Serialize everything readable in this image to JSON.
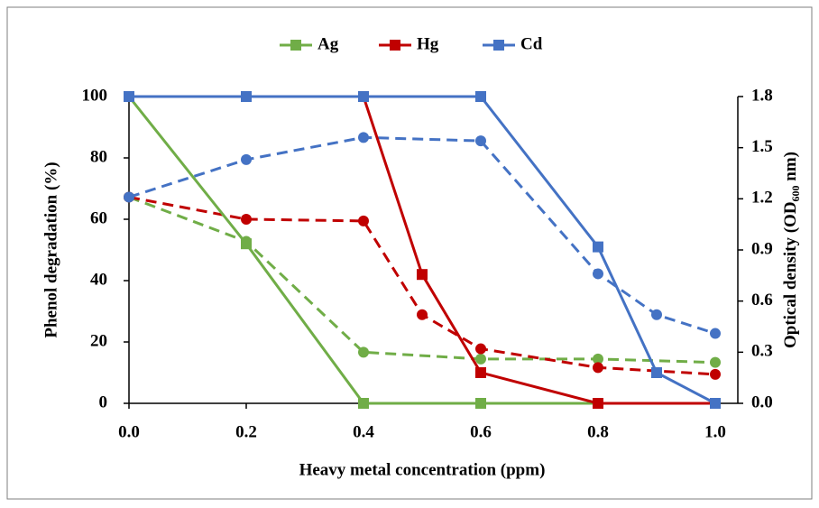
{
  "chart_data": {
    "type": "line",
    "xlabel": "Heavy metal concentration (ppm)",
    "ylabel": "Phenol degradation (%)",
    "y2label": {
      "text": "Optical density (OD",
      "subscript": "600",
      "after": " nm)"
    },
    "xlim": [
      0,
      1
    ],
    "ylim": [
      0,
      100
    ],
    "y2lim": [
      0,
      1.8
    ],
    "xticks": [
      {
        "value": 0,
        "label": "0.0"
      },
      {
        "value": 0.2,
        "label": "0.2"
      },
      {
        "value": 0.4,
        "label": "0.4"
      },
      {
        "value": 0.6,
        "label": "0.6"
      },
      {
        "value": 0.8,
        "label": "0.8"
      },
      {
        "value": 1,
        "label": "1.0"
      }
    ],
    "yticks": [
      0,
      20,
      40,
      60,
      80,
      100
    ],
    "y2ticks": [
      {
        "value": 0,
        "label": "0.0"
      },
      {
        "value": 0.3,
        "label": "0.3"
      },
      {
        "value": 0.6,
        "label": "0.6"
      },
      {
        "value": 0.9,
        "label": "0.9"
      },
      {
        "value": 1.2,
        "label": "1.2"
      },
      {
        "value": 1.5,
        "label": "1.5"
      },
      {
        "value": 1.8,
        "label": "1.8"
      }
    ],
    "legend": "top",
    "series": [
      {
        "color": "#70ad47",
        "axis": "y2",
        "line_style": "dashed",
        "marker": "circle",
        "x": [
          0,
          0.2,
          0.4,
          0.6,
          0.8,
          1
        ],
        "values": [
          1.21,
          0.95,
          0.3,
          0.26,
          0.26,
          0.24
        ]
      },
      {
        "color": "#c00000",
        "axis": "y2",
        "line_style": "dashed",
        "marker": "circle",
        "x": [
          0,
          0.2,
          0.4,
          0.5,
          0.6,
          0.8,
          1
        ],
        "values": [
          1.21,
          1.08,
          1.07,
          0.52,
          0.32,
          0.21,
          0.17
        ]
      },
      {
        "color": "#4472c4",
        "axis": "y2",
        "line_style": "dashed",
        "marker": "circle",
        "x": [
          0,
          0.2,
          0.4,
          0.6,
          0.8,
          0.9,
          1
        ],
        "values": [
          1.21,
          1.43,
          1.56,
          1.54,
          0.76,
          0.52,
          0.41
        ]
      },
      {
        "name": "Ag",
        "color": "#70ad47",
        "line_style": "solid",
        "marker": "square",
        "x": [
          0,
          0.2,
          0.4,
          0.6,
          0.8,
          1
        ],
        "values": [
          100,
          52,
          0,
          0,
          0,
          0
        ]
      },
      {
        "name": "Hg",
        "color": "#c00000",
        "line_style": "solid",
        "marker": "square",
        "x": [
          0.4,
          0.5,
          0.6,
          0.8,
          1
        ],
        "values": [
          100,
          42,
          10,
          0,
          0
        ]
      },
      {
        "name": "Cd",
        "color": "#4472c4",
        "line_style": "solid",
        "marker": "square",
        "x": [
          0,
          0.2,
          0.4,
          0.6,
          0.8,
          0.9,
          1
        ],
        "values": [
          100,
          100,
          100,
          100,
          51,
          10,
          0
        ]
      }
    ]
  }
}
